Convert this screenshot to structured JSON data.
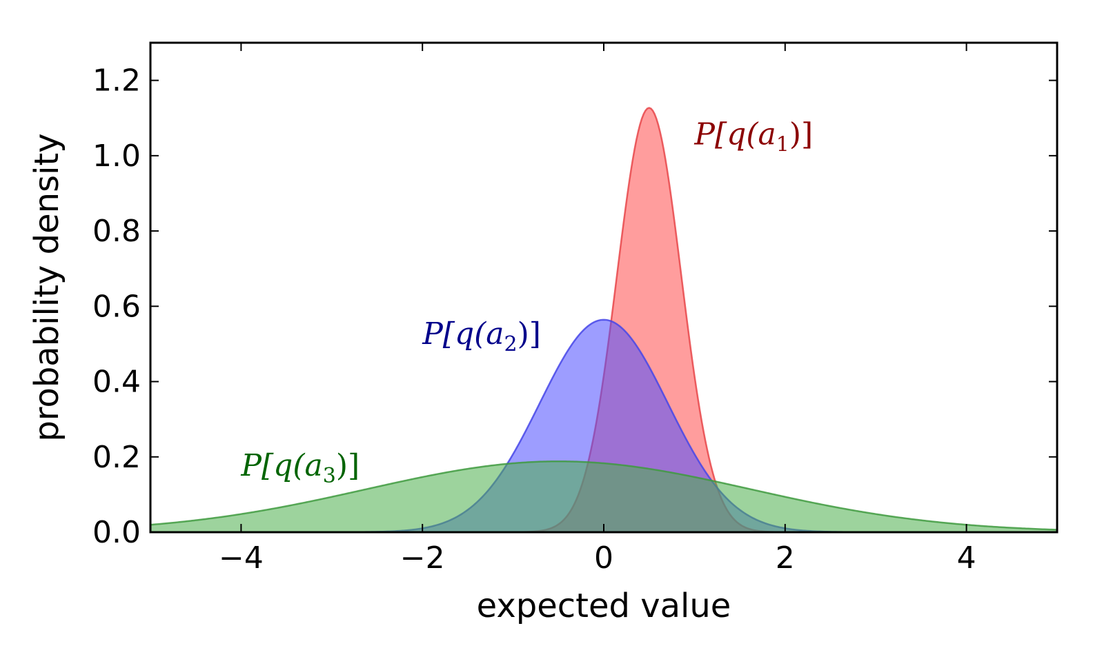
{
  "chart_data": {
    "type": "area",
    "xlabel": "expected value",
    "ylabel": "probability density",
    "xlim": [
      -5,
      5
    ],
    "ylim": [
      0,
      1.3
    ],
    "xticks": [
      -4,
      -2,
      0,
      2,
      4
    ],
    "xtick_labels": [
      "−4",
      "−2",
      "0",
      "2",
      "4"
    ],
    "yticks": [
      0.0,
      0.2,
      0.4,
      0.6,
      0.8,
      1.0,
      1.2
    ],
    "ytick_labels": [
      "0.0",
      "0.2",
      "0.4",
      "0.6",
      "0.8",
      "1.0",
      "1.2"
    ],
    "grid": false,
    "series": [
      {
        "name": "P[q(a_1)]",
        "label_parts": {
          "prefix": "P[q(a",
          "sub": "1",
          "suffix": ")]"
        },
        "distribution": "normal",
        "mean": 0.5,
        "std": 0.354,
        "peak_density": 1.13,
        "fill_color": "#ff4d4d",
        "line_color": "#e8474a",
        "label_color": "#8b0000",
        "label_anchor": {
          "x": 1.0,
          "y": 1.03
        }
      },
      {
        "name": "P[q(a_2)]",
        "label_parts": {
          "prefix": "P[q(a",
          "sub": "2",
          "suffix": ")]"
        },
        "distribution": "normal",
        "mean": 0.0,
        "std": 0.707,
        "peak_density": 0.564,
        "fill_color": "#4d4dff",
        "line_color": "#4747e8",
        "label_color": "#00008b",
        "label_anchor": {
          "x": -2.0,
          "y": 0.5
        }
      },
      {
        "name": "P[q(a_3)]",
        "label_parts": {
          "prefix": "P[q(a",
          "sub": "3",
          "suffix": ")]"
        },
        "distribution": "normal",
        "mean": -0.5,
        "std": 2.12,
        "peak_density": 0.188,
        "fill_color": "#4daf4d",
        "line_color": "#3f9a3f",
        "label_color": "#006400",
        "label_anchor": {
          "x": -4.0,
          "y": 0.15
        }
      }
    ]
  }
}
